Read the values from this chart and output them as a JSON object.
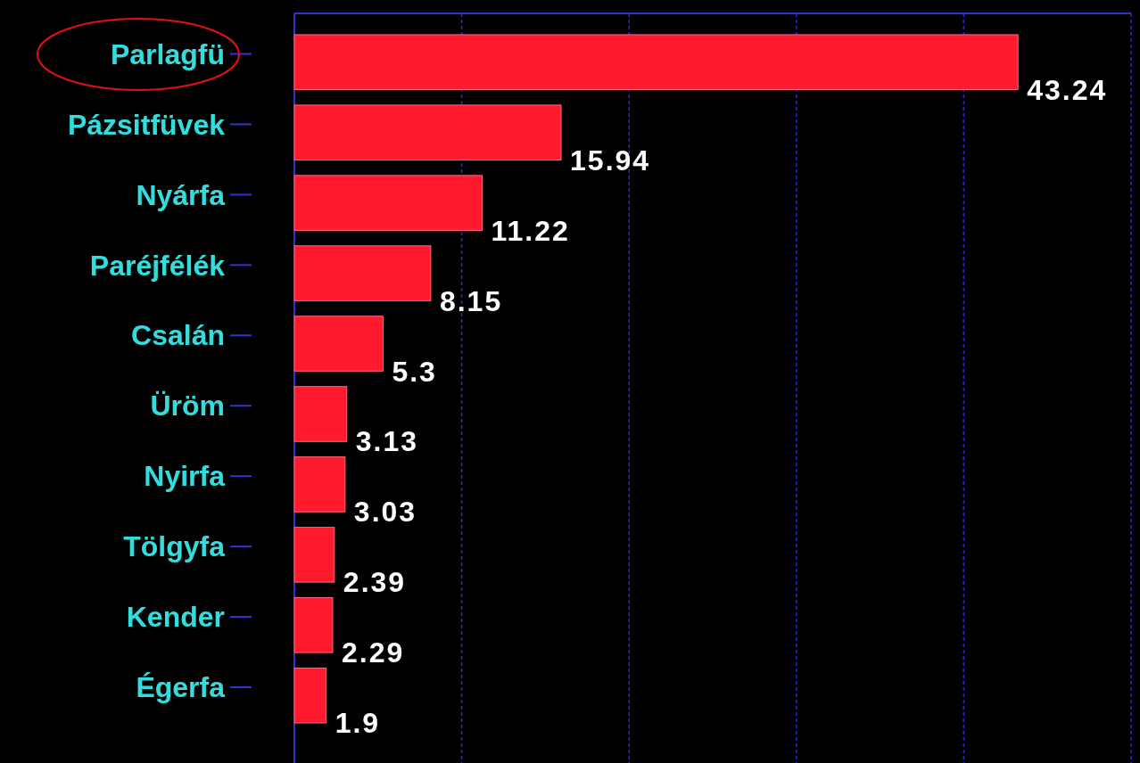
{
  "chart_data": {
    "type": "bar",
    "orientation": "horizontal",
    "categories": [
      "Parlagfü",
      "Pázsitfüvek",
      "Nyárfa",
      "Paréjfélék",
      "Csalán",
      "Üröm",
      "Nyirfa",
      "Tölgyfa",
      "Kender",
      "Égerfa"
    ],
    "values": [
      43.24,
      15.94,
      11.22,
      8.15,
      5.3,
      3.13,
      3.03,
      2.39,
      2.29,
      1.9
    ],
    "color": "#ff1a2e",
    "data_labels": true,
    "xlim": [
      0,
      50
    ],
    "xticks": [
      {
        "value": 0,
        "label": null
      },
      {
        "value": 10,
        "label": null
      },
      {
        "value": 20,
        "label": null
      },
      {
        "value": 30,
        "label": null
      },
      {
        "value": 40,
        "label": null
      },
      {
        "value": 50,
        "label": null
      }
    ],
    "grid": "x",
    "tick_labels": "y"
  }
}
